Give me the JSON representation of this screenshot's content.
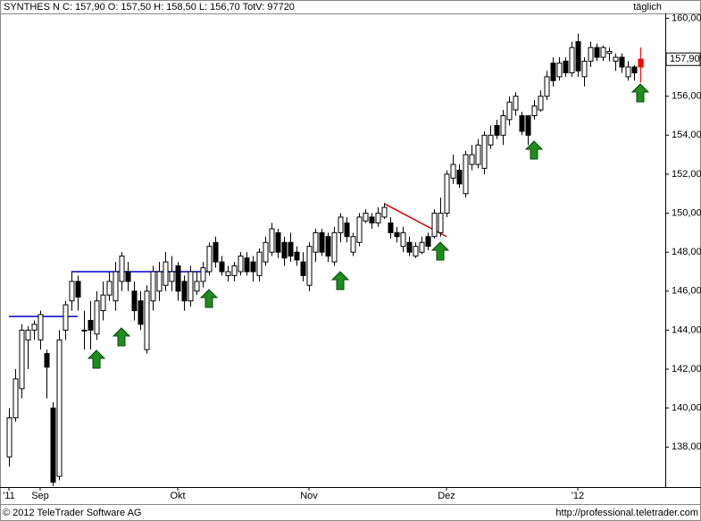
{
  "chart_data": {
    "type": "candlestick",
    "title": "SYNTHES N C: 157,90 O: 157,50 H: 158,50 L: 156,70 TotV: 97720",
    "period": "täglich",
    "footer_left": "© 2012 TeleTrader Software AG",
    "footer_right": "http://professional.teletrader.com",
    "categories": [
      "'11",
      null,
      null,
      null,
      null,
      "Sep",
      null,
      null,
      null,
      null,
      null,
      null,
      null,
      null,
      null,
      null,
      null,
      null,
      null,
      null,
      null,
      null,
      null,
      null,
      null,
      null,
      null,
      "Okt",
      null,
      null,
      null,
      null,
      null,
      null,
      null,
      null,
      null,
      null,
      null,
      null,
      null,
      null,
      null,
      null,
      null,
      null,
      null,
      null,
      "Nov",
      null,
      null,
      null,
      null,
      null,
      null,
      null,
      null,
      null,
      null,
      null,
      null,
      null,
      null,
      null,
      null,
      null,
      null,
      null,
      null,
      null,
      "Dez",
      null,
      null,
      null,
      null,
      null,
      null,
      null,
      null,
      null,
      null,
      null,
      null,
      null,
      null,
      null,
      null,
      null,
      null,
      null,
      null,
      "'12",
      null,
      null,
      null,
      null,
      null,
      null,
      null,
      null,
      null,
      null
    ],
    "open": [
      137.5,
      139.5,
      141,
      143.5,
      144,
      143.5,
      142.8,
      140,
      136.5,
      144,
      145.5,
      146.5,
      144,
      144.5,
      143.8,
      145,
      145.8,
      145.5,
      146.5,
      147,
      146,
      145.5,
      143,
      145.5,
      146,
      146.3,
      146.5,
      147.3,
      146.5,
      145.5,
      146,
      146.5,
      147,
      148.5,
      147.5,
      146.8,
      146.8,
      147,
      147.7,
      147.5,
      146.8,
      147.5,
      148,
      149,
      148.5,
      148.5,
      148,
      147.5,
      146.3,
      148,
      149,
      148.8,
      147.5,
      149,
      149.5,
      148,
      148.5,
      149.6,
      149.8,
      149.5,
      149.8,
      149.5,
      149,
      148.3,
      148.5,
      147.8,
      148,
      148.8,
      148.8,
      149,
      150,
      151.8,
      152.2,
      151,
      152.5,
      152.5,
      152.3,
      153.5,
      154.5,
      154,
      154.8,
      155.3,
      155,
      155,
      155,
      155.3,
      156,
      157.7,
      157,
      157.8,
      157.2,
      158.8,
      157,
      157.8,
      158.5,
      158,
      158.2,
      157.8,
      158,
      157,
      157.5,
      157.5
    ],
    "high": [
      140,
      142,
      144.3,
      144.2,
      144.5,
      145,
      143,
      140.3,
      144,
      145.5,
      147,
      146.8,
      145,
      145.5,
      146,
      146.5,
      147,
      147.5,
      148,
      147.5,
      146.5,
      146,
      146.3,
      147.3,
      147.5,
      148,
      147.8,
      147.5,
      146.8,
      147.3,
      147,
      147.5,
      148.5,
      148.8,
      147.8,
      147.3,
      147.5,
      148,
      148,
      147.8,
      148.2,
      148.8,
      149.5,
      149.2,
      148.8,
      149,
      148.3,
      148,
      148.5,
      149.2,
      149.2,
      149,
      149.3,
      150,
      149.8,
      149,
      150,
      150.2,
      150,
      150.3,
      150.5,
      149.8,
      149.3,
      149.3,
      148.8,
      148.5,
      148.8,
      149,
      150.2,
      150.8,
      152.2,
      153,
      152.5,
      153.2,
      153.5,
      153.8,
      154.2,
      154.5,
      154.8,
      155.3,
      156,
      156.2,
      155.2,
      155,
      155.8,
      156.3,
      157.3,
      158,
      158,
      158,
      158.8,
      159.2,
      158,
      158.8,
      158.7,
      158.6,
      158.5,
      158.2,
      158.2,
      157.8,
      157.6,
      158.5
    ],
    "low": [
      137,
      139.3,
      140.5,
      142,
      143.5,
      143,
      140.5,
      136,
      136.3,
      143.5,
      145,
      145,
      143,
      143,
      143.5,
      144.5,
      145.5,
      145,
      146,
      146,
      144.5,
      144,
      142.8,
      145,
      145.5,
      146,
      146,
      145.5,
      145,
      145.2,
      145.8,
      146.2,
      146.8,
      147.2,
      146.8,
      146.5,
      146.5,
      146.8,
      146.8,
      146.5,
      146.5,
      147.3,
      147.8,
      147.7,
      147.3,
      147.5,
      147.3,
      146.5,
      146,
      147.5,
      147.8,
      147.5,
      147.3,
      148.5,
      148.5,
      147.8,
      148.3,
      149.5,
      149.2,
      149.3,
      149.7,
      148.7,
      148.5,
      148,
      147.8,
      147.7,
      147.9,
      148.1,
      148.7,
      148.8,
      149.8,
      151.5,
      151.3,
      150.8,
      152.2,
      152.3,
      152,
      153.3,
      153.8,
      153.5,
      154.5,
      155,
      154,
      153.5,
      154.8,
      155.2,
      155.8,
      156.5,
      156.8,
      157,
      157,
      157,
      156.5,
      157.5,
      157.8,
      157.8,
      157.8,
      157.3,
      157.2,
      156.8,
      156.8,
      156.7
    ],
    "close": [
      139.5,
      141.5,
      144,
      144,
      144.3,
      144.8,
      142.1,
      136.2,
      143.5,
      145.3,
      146.5,
      145.7,
      144,
      144,
      145.5,
      145.8,
      146.5,
      147,
      147.8,
      146.5,
      145,
      144.3,
      146,
      147,
      147,
      147.5,
      147,
      146,
      145.5,
      147,
      146.5,
      147.2,
      148.3,
      147.5,
      147,
      147,
      147.3,
      147.8,
      147,
      147,
      148,
      148.5,
      149.2,
      148,
      147.7,
      147.8,
      147.6,
      146.8,
      148.3,
      149,
      148,
      147.8,
      149,
      149.8,
      148.8,
      148.8,
      149.8,
      150,
      149.5,
      150,
      150.3,
      149,
      148.8,
      149,
      148,
      148.3,
      148.5,
      148.3,
      150,
      150,
      152,
      152.5,
      151.5,
      153,
      153,
      153.5,
      154,
      154,
      154,
      155,
      155.7,
      156,
      154.2,
      154,
      155.5,
      156,
      157,
      156.8,
      157.7,
      157.2,
      158.5,
      157.3,
      157.8,
      158.5,
      158,
      158.5,
      158.3,
      158,
      157.5,
      157.5,
      157.2,
      157.9
    ],
    "up_color": "#ffffff",
    "down_color": "#000000",
    "last_color": "#ff0000",
    "last_price": {
      "value": 157.9,
      "label": "157,90"
    },
    "lines": [
      {
        "x": [
          0,
          11
        ],
        "y": [
          144.7,
          144.7
        ],
        "color": "#0000cc"
      },
      {
        "x": [
          10,
          32
        ],
        "y": [
          147,
          147
        ],
        "color": "#0000cc"
      },
      {
        "x": [
          60,
          70
        ],
        "y": [
          150.5,
          148.8
        ],
        "color": "#dd0000"
      }
    ],
    "ylim": [
      135.95,
      160.25
    ],
    "yticks": [
      {
        "value": 138,
        "label": "138,00"
      },
      {
        "value": 140,
        "label": "140,00"
      },
      {
        "value": 142,
        "label": "142,00"
      },
      {
        "value": 144,
        "label": "144,00"
      },
      {
        "value": 146,
        "label": "146,00"
      },
      {
        "value": 148,
        "label": "148,00"
      },
      {
        "value": 150,
        "label": "150,00"
      },
      {
        "value": 152,
        "label": "152,00"
      },
      {
        "value": 154,
        "label": "154,00"
      },
      {
        "value": 156,
        "label": "156,00"
      },
      {
        "value": 158,
        "label": "158,00"
      },
      {
        "value": 160,
        "label": "160,00"
      }
    ]
  }
}
